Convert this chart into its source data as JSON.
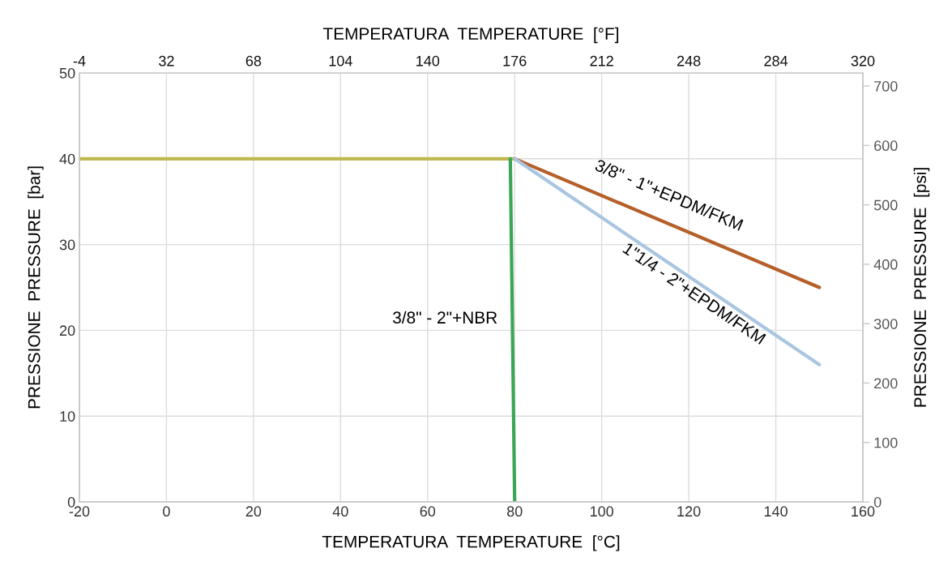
{
  "chart_data": {
    "type": "line",
    "xlabel": "TEMPERATURA  TEMPERATURE  [°C]",
    "x2label": "TEMPERATURA  TEMPERATURE  [°F]",
    "ylabel": "PRESSIONE  PRESSURE  [bar]",
    "y2label": "PRESSIONE  PRESSURE  [psi]",
    "xlim": [
      -20,
      160
    ],
    "xticks": [
      -20,
      0,
      20,
      40,
      60,
      80,
      100,
      120,
      140,
      160
    ],
    "x2lim": [
      -4,
      320
    ],
    "x2ticks": [
      -4,
      32,
      68,
      104,
      140,
      176,
      212,
      248,
      284,
      320
    ],
    "ylim": [
      0,
      50
    ],
    "yticks": [
      0,
      10,
      20,
      30,
      40,
      50
    ],
    "y2lim": [
      0,
      722
    ],
    "y2ticks": [
      0,
      100,
      200,
      300,
      400,
      500,
      600,
      700
    ],
    "grid": true,
    "marker": "none",
    "line_style": "solid",
    "series": [
      {
        "color": "#bfb84e",
        "x": [
          -20,
          80
        ],
        "values": [
          40,
          40
        ]
      },
      {
        "name": "3/8\" - 2\"+NBR",
        "color": "#3aa655",
        "x": [
          79,
          80
        ],
        "values": [
          40,
          0
        ]
      },
      {
        "name": "3/8\" - 1\"+EPDM/FKM",
        "color": "#b5602a",
        "x": [
          80,
          150
        ],
        "values": [
          40,
          25
        ]
      },
      {
        "name": "1\"1/4 - 2\"+EPDM/FKM",
        "color": "#a9c5e0",
        "x": [
          80,
          150
        ],
        "values": [
          40,
          16
        ]
      }
    ]
  }
}
